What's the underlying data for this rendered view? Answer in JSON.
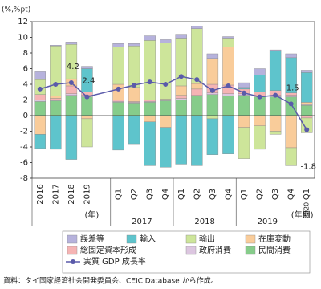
{
  "chart_data": {
    "type": "bar",
    "stacked": true,
    "unit_label": "(%,%pt)",
    "categories": [
      "2016",
      "2017",
      "2018",
      "2019",
      "Q1",
      "Q2",
      "Q3",
      "Q4",
      "Q1",
      "Q2",
      "Q3",
      "Q4",
      "Q1",
      "Q2",
      "Q3",
      "Q4",
      "Q1"
    ],
    "x_group_labels": [
      "(年)",
      "2017",
      "2018",
      "2019",
      "(年期)",
      "2020"
    ],
    "ylim": [
      -8,
      12
    ],
    "yticks": [
      -8,
      -6,
      -4,
      -2,
      0,
      2,
      4,
      6,
      8,
      10,
      12
    ],
    "series": [
      {
        "name": "民間消費",
        "color": "#86cc8a",
        "values": [
          1.8,
          1.9,
          2.6,
          2.4,
          1.7,
          1.6,
          1.7,
          1.9,
          2.0,
          2.5,
          2.7,
          2.5,
          2.6,
          2.4,
          2.4,
          2.4,
          1.3
        ]
      },
      {
        "name": "政府消費",
        "color": "#dcc6e0",
        "values": [
          0.2,
          0.1,
          0.2,
          0.2,
          0.1,
          0.1,
          0.1,
          0.1,
          0.2,
          0.1,
          0.2,
          0.3,
          0.2,
          0.1,
          0.2,
          0.2,
          0.1
        ]
      },
      {
        "name": "総固定資本形成",
        "color": "#f5b4b4",
        "values": [
          0.7,
          0.2,
          1.0,
          0.4,
          0.2,
          0.1,
          0.2,
          0.1,
          0.4,
          0.8,
          1.1,
          1.1,
          0.6,
          0.5,
          0.6,
          0.3,
          -0.3
        ]
      },
      {
        "name": "在庫変動",
        "color": "#f9cc9a",
        "values": [
          -2.4,
          0.3,
          0.9,
          -0.4,
          2.0,
          1.8,
          -0.8,
          -1.5,
          1.2,
          0.7,
          3.3,
          4.9,
          -1.5,
          -1.3,
          -2.0,
          -4.1,
          0.3
        ]
      },
      {
        "name": "輸出",
        "color": "#cde59a",
        "values": [
          1.9,
          6.4,
          4.4,
          -3.6,
          4.8,
          5.3,
          7.6,
          7.2,
          6.1,
          7.0,
          -0.4,
          1.1,
          -4.0,
          -3.0,
          -0.4,
          -2.3,
          -1.9
        ]
      },
      {
        "name": "輸入",
        "color": "#5ec4cc",
        "values": [
          -1.8,
          -4.3,
          -5.6,
          3.0,
          -4.4,
          -3.6,
          -5.6,
          -5.1,
          -6.2,
          -6.4,
          -4.6,
          -4.9,
          0.2,
          2.2,
          5.1,
          4.5,
          3.8
        ]
      },
      {
        "name": "誤差等",
        "color": "#b6b2dc",
        "values": [
          1.0,
          0.1,
          0.3,
          0.3,
          0.4,
          0.3,
          0.6,
          0.4,
          0.5,
          0.3,
          0.6,
          0.2,
          0.6,
          0.8,
          0.1,
          0.5,
          0.3
        ]
      }
    ],
    "line_series": {
      "name": "実質 GDP 成長率",
      "color": "#5a5aaa",
      "values": [
        3.4,
        4.0,
        4.2,
        2.4,
        3.4,
        3.9,
        4.3,
        4.0,
        5.0,
        4.6,
        3.2,
        3.8,
        2.9,
        2.4,
        2.6,
        1.5,
        -1.8
      ],
      "value_labels": [
        null,
        null,
        "4.2",
        "2.4",
        null,
        null,
        null,
        null,
        null,
        null,
        null,
        null,
        null,
        null,
        null,
        "1.5",
        "-1.8"
      ]
    },
    "legend_order": [
      6,
      5,
      4,
      3,
      2,
      1,
      0
    ],
    "source": "資料：タイ国家経済社会開発委員会、CEIC Database から作成。"
  }
}
